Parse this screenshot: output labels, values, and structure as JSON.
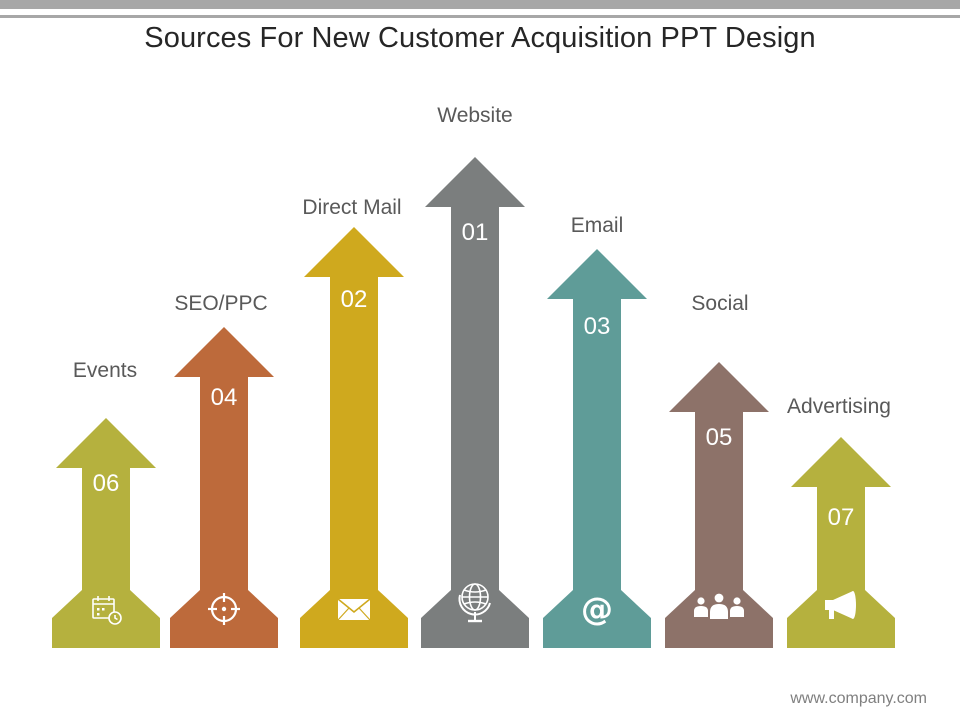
{
  "title": "Sources For New Customer Acquisition PPT Design",
  "footer": "www.company.com",
  "arrows": [
    {
      "label": "Events",
      "number": "06",
      "color": "#b5b13e",
      "icon": "calendar-clock-icon"
    },
    {
      "label": "SEO/PPC",
      "number": "04",
      "color": "#bd6a3b",
      "icon": "crosshair-icon"
    },
    {
      "label": "Direct Mail",
      "number": "02",
      "color": "#cfa91e",
      "icon": "envelope-icon"
    },
    {
      "label": "Website",
      "number": "01",
      "color": "#7b7e7e",
      "icon": "globe-icon"
    },
    {
      "label": "Email",
      "number": "03",
      "color": "#5f9c98",
      "icon": "at-sign-icon"
    },
    {
      "label": "Social",
      "number": "05",
      "color": "#8d7269",
      "icon": "people-icon"
    },
    {
      "label": "Advertising",
      "number": "07",
      "color": "#b5b13e",
      "icon": "megaphone-icon"
    }
  ]
}
